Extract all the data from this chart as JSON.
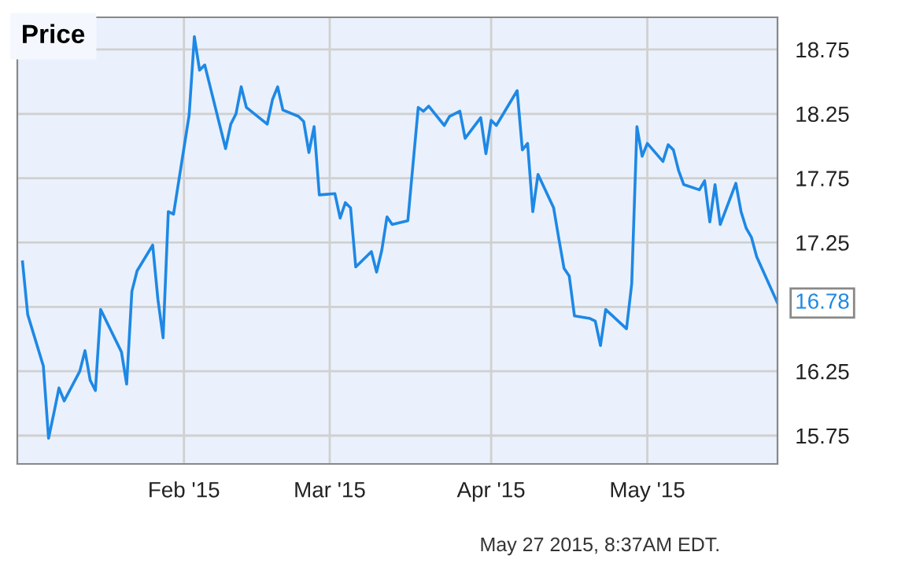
{
  "chart_data": {
    "type": "line",
    "title": "Price",
    "x": [
      "2015-01-01",
      "2015-01-02",
      "2015-01-05",
      "2015-01-06",
      "2015-01-07",
      "2015-01-08",
      "2015-01-09",
      "2015-01-12",
      "2015-01-13",
      "2015-01-14",
      "2015-01-15",
      "2015-01-16",
      "2015-01-20",
      "2015-01-21",
      "2015-01-22",
      "2015-01-23",
      "2015-01-26",
      "2015-01-27",
      "2015-01-28",
      "2015-01-29",
      "2015-01-30",
      "2015-02-02",
      "2015-02-03",
      "2015-02-04",
      "2015-02-05",
      "2015-02-09",
      "2015-02-10",
      "2015-02-11",
      "2015-02-12",
      "2015-02-13",
      "2015-02-17",
      "2015-02-18",
      "2015-02-19",
      "2015-02-20",
      "2015-02-23",
      "2015-02-24",
      "2015-02-25",
      "2015-02-26",
      "2015-02-27",
      "2015-03-02",
      "2015-03-03",
      "2015-03-04",
      "2015-03-05",
      "2015-03-06",
      "2015-03-09",
      "2015-03-10",
      "2015-03-11",
      "2015-03-12",
      "2015-03-13",
      "2015-03-16",
      "2015-03-18",
      "2015-03-19",
      "2015-03-20",
      "2015-03-23",
      "2015-03-24",
      "2015-03-26",
      "2015-03-27",
      "2015-03-30",
      "2015-03-31",
      "2015-04-01",
      "2015-04-02",
      "2015-04-06",
      "2015-04-07",
      "2015-04-08",
      "2015-04-09",
      "2015-04-10",
      "2015-04-13",
      "2015-04-14",
      "2015-04-15",
      "2015-04-16",
      "2015-04-17",
      "2015-04-20",
      "2015-04-21",
      "2015-04-22",
      "2015-04-23",
      "2015-04-27",
      "2015-04-28",
      "2015-04-29",
      "2015-04-30",
      "2015-05-01",
      "2015-05-04",
      "2015-05-05",
      "2015-05-06",
      "2015-05-07",
      "2015-05-08",
      "2015-05-11",
      "2015-05-12",
      "2015-05-13",
      "2015-05-14",
      "2015-05-15",
      "2015-05-18",
      "2015-05-19",
      "2015-05-20",
      "2015-05-21",
      "2015-05-22",
      "2015-05-26"
    ],
    "series": [
      {
        "color": "#1e88e5",
        "values": [
          17.1,
          16.69,
          16.29,
          15.73,
          15.92,
          16.12,
          16.02,
          16.25,
          16.41,
          16.18,
          16.1,
          16.73,
          16.4,
          16.15,
          16.87,
          17.03,
          17.23,
          16.81,
          16.51,
          17.49,
          17.47,
          18.24,
          18.85,
          18.59,
          18.63,
          17.98,
          18.17,
          18.25,
          18.46,
          18.3,
          18.17,
          18.36,
          18.46,
          18.28,
          18.23,
          18.19,
          17.95,
          18.15,
          17.62,
          17.63,
          17.44,
          17.56,
          17.52,
          17.06,
          17.18,
          17.02,
          17.19,
          17.45,
          17.39,
          17.42,
          18.3,
          18.27,
          18.31,
          18.16,
          18.23,
          18.27,
          18.06,
          18.22,
          17.94,
          18.2,
          18.16,
          18.43,
          17.97,
          18.02,
          17.49,
          17.78,
          17.52,
          17.28,
          17.05,
          16.99,
          16.68,
          16.66,
          16.64,
          16.45,
          16.73,
          16.58,
          16.93,
          18.15,
          17.92,
          18.02,
          17.88,
          18.01,
          17.97,
          17.81,
          17.7,
          17.66,
          17.73,
          17.41,
          17.7,
          17.39,
          17.71,
          17.49,
          17.36,
          17.29,
          17.14,
          16.78
        ]
      }
    ],
    "xlim": [
      "2014-12-31",
      "2015-05-26"
    ],
    "xticks": [
      {
        "value": "2015-02-01",
        "label": "Feb '15"
      },
      {
        "value": "2015-03-01",
        "label": "Mar '15"
      },
      {
        "value": "2015-04-01",
        "label": "Apr '15"
      },
      {
        "value": "2015-05-01",
        "label": "May '15"
      }
    ],
    "ylim": [
      15.53,
      19.0
    ],
    "yticks": [
      {
        "value": 15.75,
        "label": "15.75"
      },
      {
        "value": 16.25,
        "label": "16.25"
      },
      {
        "value": 16.75,
        "label": null
      },
      {
        "value": 17.25,
        "label": "17.25"
      },
      {
        "value": 17.75,
        "label": "17.75"
      },
      {
        "value": 18.25,
        "label": "18.25"
      },
      {
        "value": 18.75,
        "label": "18.75"
      }
    ],
    "grid": true,
    "marker": "none",
    "line_style": "solid",
    "annotations": [
      {
        "text": "16.78",
        "x": "2015-05-26",
        "y": 16.78
      },
      "May 27 2015, 8:37AM EDT."
    ]
  }
}
